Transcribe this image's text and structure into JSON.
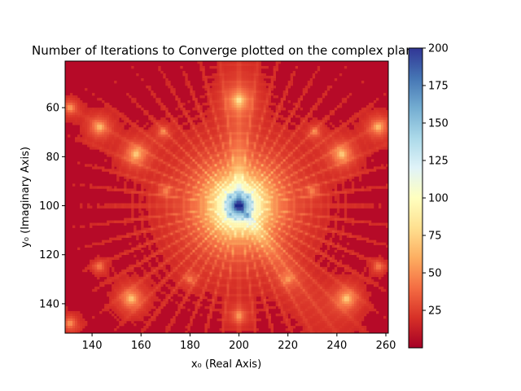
{
  "chart_data": {
    "type": "heatmap",
    "title": "Number of Iterations to Converge plotted on the complex plane",
    "xlabel": "x₀ (Real Axis)",
    "ylabel": "y₀ (Imaginary Axis)",
    "x_range": [
      129,
      261
    ],
    "y_range": [
      41,
      152
    ],
    "y_inverted": true,
    "x_ticks": [
      140,
      160,
      180,
      200,
      220,
      240,
      260
    ],
    "y_ticks": [
      60,
      80,
      100,
      120,
      140
    ],
    "colorbar": {
      "colormap": "RdYlBu",
      "range": [
        0,
        200
      ],
      "ticks": [
        25,
        50,
        75,
        100,
        125,
        150,
        175,
        200
      ]
    },
    "grid": false,
    "legend": "none"
  }
}
